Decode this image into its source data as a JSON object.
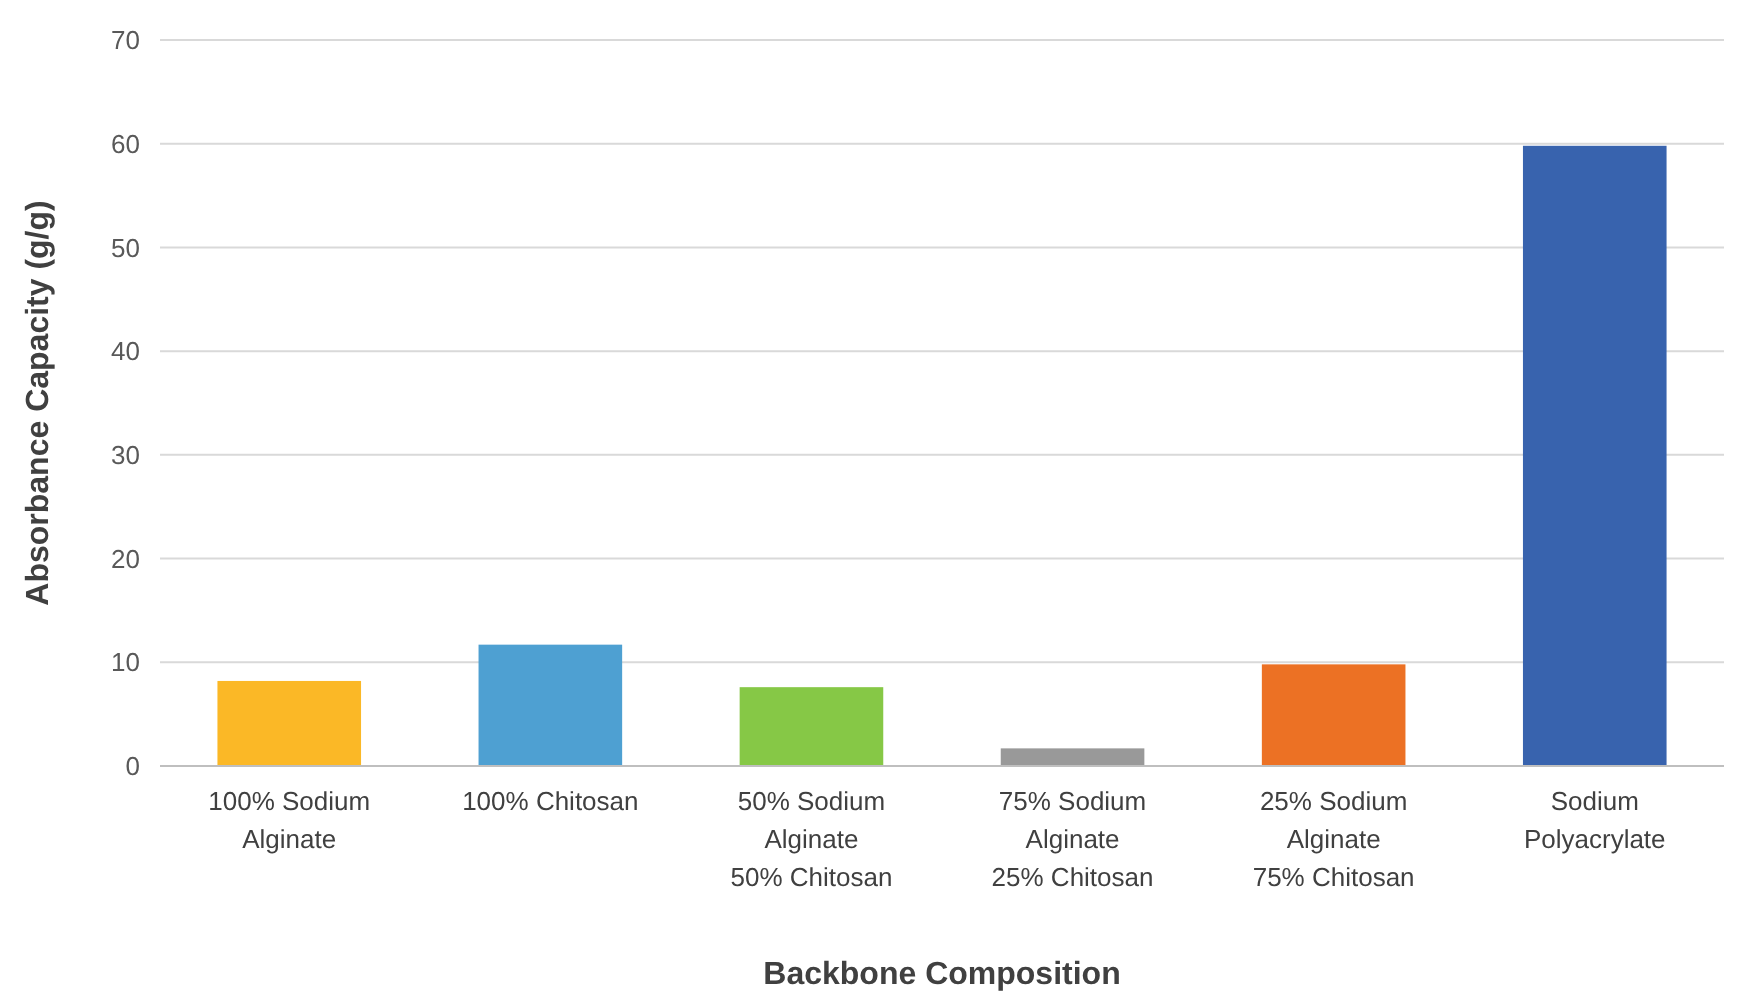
{
  "chart_data": {
    "type": "bar",
    "xlabel": "Backbone Composition",
    "ylabel": "Absorbance Capacity (g/g)",
    "categories": [
      "100% Sodium\nAlginate",
      "100% Chitosan",
      "50% Sodium\nAlginate\n50% Chitosan",
      "75% Sodium\nAlginate\n25% Chitosan",
      "25% Sodium\nAlginate\n75% Chitosan",
      "Sodium\nPolyacrylate"
    ],
    "values": [
      8.2,
      11.7,
      7.6,
      1.7,
      9.8,
      59.8
    ],
    "colors": [
      "#fbb826",
      "#4ea0d2",
      "#86c846",
      "#999999",
      "#ec7124",
      "#3863ae"
    ],
    "ylim": [
      0,
      70
    ],
    "yticks": [
      0,
      10,
      20,
      30,
      40,
      50,
      60,
      70
    ],
    "grid": "y"
  }
}
